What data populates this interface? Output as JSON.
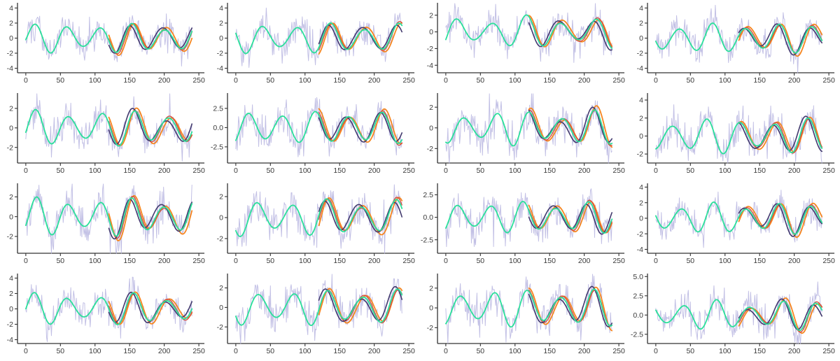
{
  "figure": {
    "title": "",
    "rows": 4,
    "cols": 4,
    "background": "#ffffff"
  },
  "chart_data": {
    "type": "line",
    "layout": {
      "grid": false,
      "legend": "none",
      "spines": [
        "left",
        "bottom"
      ],
      "spine_color": "#333333"
    },
    "x_axis": {
      "tick_vals": [
        0,
        50,
        100,
        150,
        200,
        250
      ],
      "tick_labels": [
        "0",
        "50",
        "100",
        "150",
        "200",
        "250"
      ],
      "data_range": [
        0,
        240
      ],
      "axis_extent": [
        -12,
        258
      ]
    },
    "forecast_start": 120,
    "series_colors": {
      "observed_noisy": "#b7b5e0",
      "smooth_signal": "#2be09b",
      "forecast_orange": "#f6861f",
      "forecast_red": "#d24b40",
      "forecast_indigo": "#423a6e"
    },
    "forecast_series": [
      {
        "name": "forecast_orange",
        "color": "#f6861f",
        "width": 1.8,
        "amp_scale": 1.1,
        "phase_shift": 3,
        "dev_amp": 0.28,
        "dev_period": 95
      },
      {
        "name": "forecast_red",
        "color": "#d24b40",
        "width": 1.3,
        "amp_scale": 1.03,
        "phase_shift": 1,
        "dev_amp": 0.18,
        "dev_period": 75
      },
      {
        "name": "forecast_indigo",
        "color": "#423a6e",
        "width": 1.6,
        "amp_scale": 1.0,
        "phase_shift": -3,
        "dev_amp": 0.3,
        "dev_period": 108
      }
    ],
    "subplots": [
      {
        "id": "r1c1",
        "row": 1,
        "col": 1,
        "ylim": [
          -4.6,
          4.6
        ],
        "ytick_vals": [
          4,
          2,
          0,
          -2,
          -4
        ],
        "ytick_labels": [
          "4",
          "2",
          "0",
          "-2",
          "-4"
        ],
        "seed": 101,
        "noise_sd": 1.0,
        "signal": {
          "amp": 1.55,
          "period": 47,
          "phase": 1,
          "wobble": 0.3,
          "wobble_period": 115,
          "wobble_phase": 0.0
        }
      },
      {
        "id": "r1c2",
        "row": 1,
        "col": 2,
        "ylim": [
          -4.6,
          4.6
        ],
        "ytick_vals": [
          4,
          2,
          0,
          -2,
          -4
        ],
        "ytick_labels": [
          "4",
          "2",
          "0",
          "-2",
          "-4"
        ],
        "seed": 102,
        "noise_sd": 1.05,
        "signal": {
          "amp": 1.6,
          "period": 49,
          "phase": 27,
          "wobble": 0.3,
          "wobble_period": 120,
          "wobble_phase": 1.2
        }
      },
      {
        "id": "r1c3",
        "row": 1,
        "col": 3,
        "ylim": [
          -4.9,
          3.4
        ],
        "ytick_vals": [
          2,
          0,
          -2,
          -4
        ],
        "ytick_labels": [
          "2",
          "0",
          "-2",
          "-4"
        ],
        "seed": 103,
        "noise_sd": 1.0,
        "signal": {
          "amp": 1.45,
          "period": 50,
          "phase": 4,
          "wobble": 0.4,
          "wobble_period": 130,
          "wobble_phase": 2.2
        }
      },
      {
        "id": "r1c4",
        "row": 1,
        "col": 4,
        "ylim": [
          -4.6,
          4.6
        ],
        "ytick_vals": [
          4,
          2,
          0,
          -2,
          -4
        ],
        "ytick_labels": [
          "4",
          "2",
          "0",
          "-2",
          "-4"
        ],
        "seed": 104,
        "noise_sd": 1.0,
        "signal": {
          "amp": 1.6,
          "period": 48,
          "phase": 22,
          "wobble": 0.25,
          "wobble_period": 110,
          "wobble_phase": 3.0
        }
      },
      {
        "id": "r2c1",
        "row": 2,
        "col": 1,
        "ylim": [
          -3.6,
          3.5
        ],
        "ytick_vals": [
          2,
          0,
          -2
        ],
        "ytick_labels": [
          "2",
          "0",
          "-2"
        ],
        "seed": 105,
        "noise_sd": 0.9,
        "signal": {
          "amp": 1.45,
          "period": 48,
          "phase": 2,
          "wobble": 0.3,
          "wobble_period": 125,
          "wobble_phase": 0.8
        }
      },
      {
        "id": "r2c2",
        "row": 2,
        "col": 2,
        "ylim": [
          -4.6,
          4.4
        ],
        "ytick_vals": [
          2.5,
          0,
          -2.5
        ],
        "ytick_labels": [
          "2.5",
          "0.0",
          "-2.5"
        ],
        "seed": 106,
        "noise_sd": 1.1,
        "signal": {
          "amp": 1.75,
          "period": 48,
          "phase": 7,
          "wobble": 0.2,
          "wobble_period": 115,
          "wobble_phase": 1.8
        }
      },
      {
        "id": "r2c3",
        "row": 2,
        "col": 3,
        "ylim": [
          -3.4,
          3.3
        ],
        "ytick_vals": [
          2,
          0,
          -2
        ],
        "ytick_labels": [
          "2",
          "0",
          "-2"
        ],
        "seed": 107,
        "noise_sd": 0.95,
        "signal": {
          "amp": 1.3,
          "period": 47,
          "phase": 15,
          "wobble": 0.35,
          "wobble_period": 120,
          "wobble_phase": 2.6
        }
      },
      {
        "id": "r2c4",
        "row": 2,
        "col": 4,
        "ylim": [
          -3.0,
          4.7
        ],
        "ytick_vals": [
          4,
          2,
          0,
          -2
        ],
        "ytick_labels": [
          "4",
          "2",
          "0",
          "-2"
        ],
        "seed": 108,
        "noise_sd": 1.0,
        "signal": {
          "amp": 1.55,
          "period": 49,
          "phase": 12,
          "wobble": 0.3,
          "wobble_period": 125,
          "wobble_phase": 3.4
        }
      },
      {
        "id": "r3c1",
        "row": 3,
        "col": 1,
        "ylim": [
          -3.7,
          3.3
        ],
        "ytick_vals": [
          2,
          0,
          -2
        ],
        "ytick_labels": [
          "2",
          "0",
          "-2"
        ],
        "seed": 109,
        "noise_sd": 0.95,
        "signal": {
          "amp": 1.5,
          "period": 46,
          "phase": 4,
          "wobble": 0.35,
          "wobble_period": 118,
          "wobble_phase": 0.4
        }
      },
      {
        "id": "r3c2",
        "row": 3,
        "col": 2,
        "ylim": [
          -3.4,
          3.2
        ],
        "ytick_vals": [
          2,
          0,
          -2
        ],
        "ytick_labels": [
          "2",
          "0",
          "-2"
        ],
        "seed": 110,
        "noise_sd": 0.95,
        "signal": {
          "amp": 1.4,
          "period": 50,
          "phase": 19,
          "wobble": 0.3,
          "wobble_period": 122,
          "wobble_phase": 1.5
        }
      },
      {
        "id": "r3c3",
        "row": 3,
        "col": 3,
        "ylim": [
          -4.0,
          3.7
        ],
        "ytick_vals": [
          2.5,
          0,
          -2.5
        ],
        "ytick_labels": [
          "2.5",
          "0.0",
          "-2.5"
        ],
        "seed": 111,
        "noise_sd": 1.05,
        "signal": {
          "amp": 1.4,
          "period": 47,
          "phase": 6,
          "wobble": 0.3,
          "wobble_period": 117,
          "wobble_phase": 2.4
        }
      },
      {
        "id": "r3c4",
        "row": 3,
        "col": 4,
        "ylim": [
          -4.5,
          4.4
        ],
        "ytick_vals": [
          4,
          2,
          0,
          -2,
          -4
        ],
        "ytick_labels": [
          "4",
          "2",
          "0",
          "-2",
          "-4"
        ],
        "seed": 112,
        "noise_sd": 1.0,
        "signal": {
          "amp": 1.6,
          "period": 47,
          "phase": 25,
          "wobble": 0.3,
          "wobble_period": 112,
          "wobble_phase": 3.2
        }
      },
      {
        "id": "r4c1",
        "row": 4,
        "col": 1,
        "ylim": [
          -4.5,
          4.5
        ],
        "ytick_vals": [
          4,
          2,
          0,
          -2,
          -4
        ],
        "ytick_labels": [
          "4",
          "2",
          "0",
          "-2",
          "-4"
        ],
        "seed": 113,
        "noise_sd": 1.0,
        "signal": {
          "amp": 1.6,
          "period": 48,
          "phase": 0,
          "wobble": 0.35,
          "wobble_period": 126,
          "wobble_phase": 0.6
        }
      },
      {
        "id": "r4c2",
        "row": 4,
        "col": 2,
        "ylim": [
          -3.7,
          3.4
        ],
        "ytick_vals": [
          2,
          0,
          -2
        ],
        "ytick_labels": [
          "2",
          "0",
          "-2"
        ],
        "seed": 114,
        "noise_sd": 0.95,
        "signal": {
          "amp": 1.45,
          "period": 50,
          "phase": 21,
          "wobble": 0.3,
          "wobble_period": 119,
          "wobble_phase": 1.7
        }
      },
      {
        "id": "r4c3",
        "row": 4,
        "col": 3,
        "ylim": [
          -3.6,
          3.4
        ],
        "ytick_vals": [
          2,
          0,
          -2
        ],
        "ytick_labels": [
          "2",
          "0",
          "-2"
        ],
        "seed": 115,
        "noise_sd": 0.95,
        "signal": {
          "amp": 1.5,
          "period": 48,
          "phase": 10,
          "wobble": 0.3,
          "wobble_period": 124,
          "wobble_phase": 2.8
        }
      },
      {
        "id": "r4c4",
        "row": 4,
        "col": 4,
        "ylim": [
          -3.7,
          5.3
        ],
        "ytick_vals": [
          5,
          2.5,
          0,
          -2.5
        ],
        "ytick_labels": [
          "5.0",
          "2.5",
          "0.0",
          "-2.5"
        ],
        "seed": 116,
        "noise_sd": 1.1,
        "signal": {
          "amp": 1.5,
          "period": 48,
          "phase": 28,
          "wobble": 0.35,
          "wobble_period": 121,
          "wobble_phase": 3.6
        }
      }
    ]
  },
  "style": {
    "tick_label_color": "#3a3a3a",
    "tick_label_size": 10.5,
    "axis_color": "#333333"
  }
}
